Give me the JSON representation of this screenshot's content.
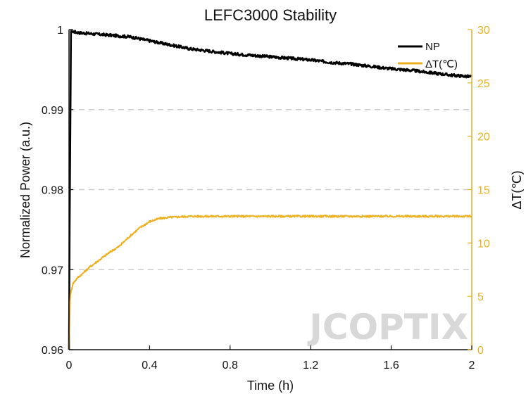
{
  "chart_data": {
    "type": "line",
    "title": "LEFC3000 Stability",
    "xlabel": "Time (h)",
    "ylabel": "Normalized Power (a.u.)",
    "y2label": "ΔT(℃)",
    "xlim": [
      0,
      2
    ],
    "ylim": [
      0.96,
      1.0
    ],
    "y2lim": [
      0,
      30
    ],
    "x_ticks": [
      "0",
      "0.4",
      "0.8",
      "1.2",
      "1.6",
      "2"
    ],
    "x_tick_values": [
      0,
      0.4,
      0.8,
      1.2,
      1.6,
      2
    ],
    "y_ticks": [
      "0.96",
      "0.97",
      "0.98",
      "0.99",
      "1"
    ],
    "y_tick_values": [
      0.96,
      0.97,
      0.98,
      0.99,
      1.0
    ],
    "y2_ticks": [
      "0",
      "5",
      "10",
      "15",
      "20",
      "25",
      "30"
    ],
    "y2_tick_values": [
      0,
      5,
      10,
      15,
      20,
      25,
      30
    ],
    "grid": "horizontal dashed",
    "legend_position": "top-right",
    "colors": {
      "np": "#000000",
      "dt": "#edb120",
      "grid": "#cccccc"
    },
    "series": [
      {
        "name": "NP",
        "axis": "left",
        "x": [
          0,
          0.003,
          0.01,
          0.05,
          0.1,
          0.2,
          0.3,
          0.4,
          0.5,
          0.6,
          0.7,
          0.8,
          0.9,
          1.0,
          1.1,
          1.2,
          1.3,
          1.4,
          1.5,
          1.6,
          1.7,
          1.8,
          1.9,
          2.0
        ],
        "values": [
          0.96,
          0.975,
          0.9998,
          0.9996,
          0.9995,
          0.9993,
          0.9991,
          0.9986,
          0.9981,
          0.9976,
          0.9973,
          0.997,
          0.9968,
          0.9966,
          0.9964,
          0.9962,
          0.9959,
          0.9957,
          0.9954,
          0.9951,
          0.9949,
          0.9946,
          0.9943,
          0.9941
        ]
      },
      {
        "name": "ΔT(℃)",
        "axis": "right",
        "x": [
          0,
          0.005,
          0.01,
          0.02,
          0.04,
          0.06,
          0.1,
          0.15,
          0.2,
          0.25,
          0.3,
          0.35,
          0.4,
          0.45,
          0.5,
          0.6,
          0.8,
          1.0,
          1.2,
          1.4,
          1.6,
          1.8,
          2.0
        ],
        "values": [
          0,
          4.5,
          5.5,
          6.2,
          6.7,
          7.0,
          7.7,
          8.4,
          9.1,
          9.7,
          10.6,
          11.4,
          12.0,
          12.3,
          12.4,
          12.5,
          12.5,
          12.5,
          12.5,
          12.5,
          12.5,
          12.5,
          12.5
        ]
      }
    ]
  },
  "watermark": "JCOPTIX"
}
